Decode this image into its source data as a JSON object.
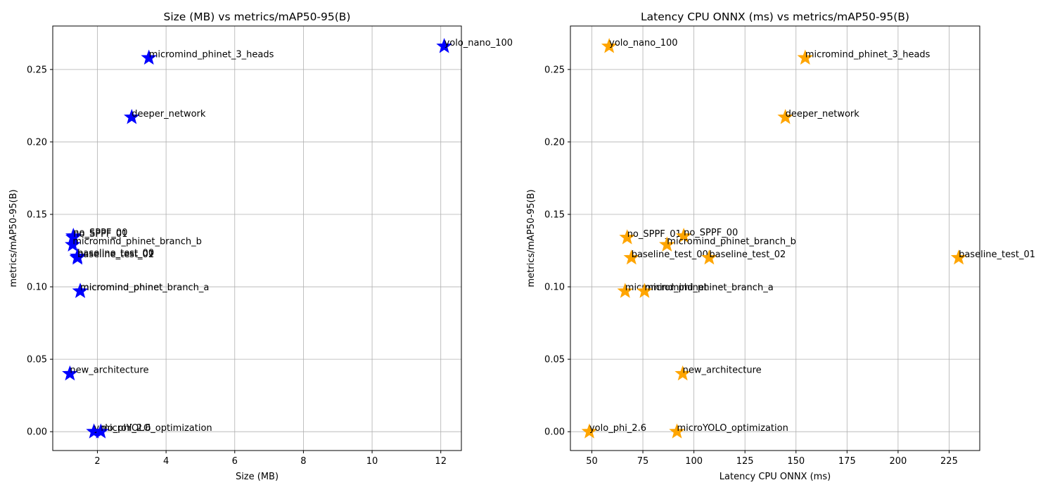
{
  "chart_data": [
    {
      "type": "scatter",
      "title": "Size (MB) vs metrics/mAP50-95(B)",
      "xlabel": "Size (MB)",
      "ylabel": "metrics/mAP50-95(B)",
      "xlim": [
        0.7,
        12.6
      ],
      "ylim": [
        -0.013,
        0.28
      ],
      "xticks": [
        2,
        4,
        6,
        8,
        10,
        12
      ],
      "xtick_labels": [
        "2",
        "4",
        "6",
        "8",
        "10",
        "12"
      ],
      "yticks": [
        0.0,
        0.05,
        0.1,
        0.15,
        0.2,
        0.25
      ],
      "ytick_labels": [
        "0.00",
        "0.05",
        "0.10",
        "0.15",
        "0.20",
        "0.25"
      ],
      "grid": true,
      "marker": "star",
      "color": "#0000ff",
      "points": [
        {
          "label": "yolo_nano_100",
          "x": 12.1,
          "y": 0.266
        },
        {
          "label": "micromind_phinet_3_heads",
          "x": 3.5,
          "y": 0.258
        },
        {
          "label": "deeper_network",
          "x": 3.0,
          "y": 0.217
        },
        {
          "label": "no_SPPF_00",
          "x": 1.3,
          "y": 0.135
        },
        {
          "label": "no_SPPF_01",
          "x": 1.3,
          "y": 0.134
        },
        {
          "label": "micromind_phinet_branch_b",
          "x": 1.28,
          "y": 0.129
        },
        {
          "label": "baseline_test_00",
          "x": 1.42,
          "y": 0.121
        },
        {
          "label": "baseline_test_01",
          "x": 1.42,
          "y": 0.12
        },
        {
          "label": "baseline_test_02",
          "x": 1.42,
          "y": 0.12
        },
        {
          "label": "micromind_phinet",
          "x": 1.5,
          "y": 0.097
        },
        {
          "label": "micromind_phinet_branch_a",
          "x": 1.5,
          "y": 0.097
        },
        {
          "label": "new_architecture",
          "x": 1.2,
          "y": 0.04
        },
        {
          "label": "yolo_phi_2.6",
          "x": 1.9,
          "y": 0.0
        },
        {
          "label": "microYOLO_optimization",
          "x": 2.1,
          "y": 0.0
        }
      ]
    },
    {
      "type": "scatter",
      "title": "Latency CPU ONNX (ms) vs metrics/mAP50-95(B)",
      "xlabel": "Latency CPU ONNX (ms)",
      "ylabel": "metrics/mAP50-95(B)",
      "xlim": [
        39.5,
        240
      ],
      "ylim": [
        -0.013,
        0.28
      ],
      "xticks": [
        50,
        75,
        100,
        125,
        150,
        175,
        200,
        225
      ],
      "xtick_labels": [
        "50",
        "75",
        "100",
        "125",
        "150",
        "175",
        "200",
        "225"
      ],
      "yticks": [
        0.0,
        0.05,
        0.1,
        0.15,
        0.2,
        0.25
      ],
      "ytick_labels": [
        "0.00",
        "0.05",
        "0.10",
        "0.15",
        "0.20",
        "0.25"
      ],
      "grid": true,
      "marker": "star",
      "color": "#ffa500",
      "points": [
        {
          "label": "yolo_nano_100",
          "x": 58.5,
          "y": 0.266
        },
        {
          "label": "micromind_phinet_3_heads",
          "x": 154.5,
          "y": 0.258
        },
        {
          "label": "deeper_network",
          "x": 144.8,
          "y": 0.217
        },
        {
          "label": "no_SPPF_01",
          "x": 67.3,
          "y": 0.134
        },
        {
          "label": "no_SPPF_00",
          "x": 95.0,
          "y": 0.135
        },
        {
          "label": "micromind_phinet_branch_b",
          "x": 86.8,
          "y": 0.129
        },
        {
          "label": "baseline_test_00",
          "x": 69.4,
          "y": 0.12
        },
        {
          "label": "baseline_test_02",
          "x": 107.5,
          "y": 0.12
        },
        {
          "label": "baseline_test_01",
          "x": 229.7,
          "y": 0.12
        },
        {
          "label": "micromind_phinet",
          "x": 66.3,
          "y": 0.097
        },
        {
          "label": "micromind_phinet_branch_a",
          "x": 75.8,
          "y": 0.097
        },
        {
          "label": "new_architecture",
          "x": 94.5,
          "y": 0.04
        },
        {
          "label": "yolo_phi_2.6",
          "x": 48.8,
          "y": 0.0
        },
        {
          "label": "microYOLO_optimization",
          "x": 91.7,
          "y": 0.0
        }
      ]
    }
  ]
}
